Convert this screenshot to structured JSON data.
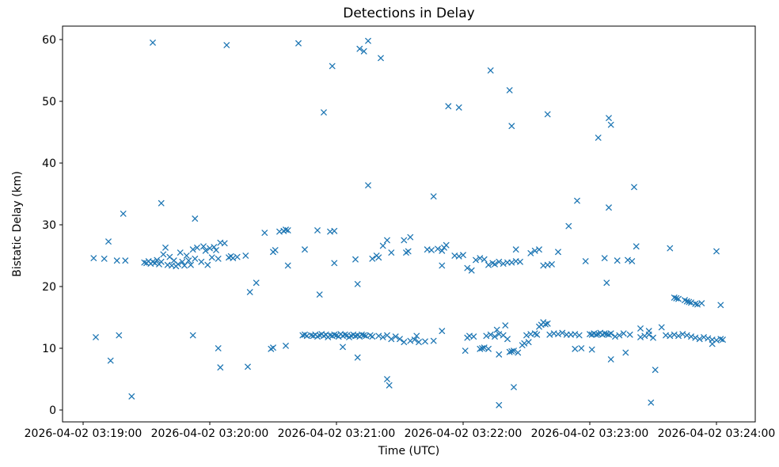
{
  "chart": {
    "title": "Detections in Delay",
    "xlabel": "Time (UTC)",
    "ylabel": "Bistatic Delay (km)"
  },
  "chart_data": {
    "type": "scatter",
    "title": "Detections in Delay",
    "xlabel": "Time (UTC)",
    "ylabel": "Bistatic Delay (km)",
    "marker": "x",
    "marker_color": "#1f77b4",
    "grid": false,
    "legend": null,
    "x_unit": "seconds after 2026-04-02 03:19:00 UTC",
    "x_tick_labels": [
      "2026-04-02 03:19:00",
      "2026-04-02 03:20:00",
      "2026-04-02 03:21:00",
      "2026-04-02 03:22:00",
      "2026-04-02 03:23:00",
      "2026-04-02 03:24:00"
    ],
    "x_ticks_seconds": [
      0,
      60,
      120,
      180,
      240,
      300
    ],
    "y_ticks": [
      0,
      10,
      20,
      30,
      40,
      50,
      60
    ],
    "xlim_seconds": [
      -9.75,
      318.4
    ],
    "ylim": [
      -1.9,
      62.2
    ],
    "points": [
      [
        5,
        24.6
      ],
      [
        6,
        11.8
      ],
      [
        10,
        24.5
      ],
      [
        12,
        27.3
      ],
      [
        13,
        8.0
      ],
      [
        16,
        24.2
      ],
      [
        17,
        12.1
      ],
      [
        19,
        31.8
      ],
      [
        20,
        24.2
      ],
      [
        23,
        2.2
      ],
      [
        29,
        23.9
      ],
      [
        30,
        23.8
      ],
      [
        31,
        24.1
      ],
      [
        32,
        23.7
      ],
      [
        33,
        24.0
      ],
      [
        33,
        59.5
      ],
      [
        34,
        23.8
      ],
      [
        35,
        24.3
      ],
      [
        36,
        23.6
      ],
      [
        37,
        24.0
      ],
      [
        37,
        33.5
      ],
      [
        38,
        25.2
      ],
      [
        39,
        26.3
      ],
      [
        40,
        23.5
      ],
      [
        41,
        24.8
      ],
      [
        42,
        23.4
      ],
      [
        43,
        24.2
      ],
      [
        44,
        23.3
      ],
      [
        45,
        23.6
      ],
      [
        46,
        25.5
      ],
      [
        47,
        24.0
      ],
      [
        48,
        23.4
      ],
      [
        49,
        25.0
      ],
      [
        50,
        24.2
      ],
      [
        51,
        23.5
      ],
      [
        52,
        26.0
      ],
      [
        52,
        12.1
      ],
      [
        53,
        24.5
      ],
      [
        53,
        31.0
      ],
      [
        54,
        26.3
      ],
      [
        56,
        24.0
      ],
      [
        57,
        26.5
      ],
      [
        58,
        25.8
      ],
      [
        59,
        23.5
      ],
      [
        60,
        26.2
      ],
      [
        61,
        24.7
      ],
      [
        62,
        26.4
      ],
      [
        63,
        25.9
      ],
      [
        64,
        24.5
      ],
      [
        64,
        10.0
      ],
      [
        65,
        27.1
      ],
      [
        65,
        6.9
      ],
      [
        67,
        27.0
      ],
      [
        68,
        59.1
      ],
      [
        69,
        24.7
      ],
      [
        70,
        24.9
      ],
      [
        71,
        24.6
      ],
      [
        73,
        24.8
      ],
      [
        77,
        25.0
      ],
      [
        78,
        7.0
      ],
      [
        79,
        19.1
      ],
      [
        82,
        20.6
      ],
      [
        86,
        28.7
      ],
      [
        89,
        9.9
      ],
      [
        90,
        10.1
      ],
      [
        90,
        25.6
      ],
      [
        91,
        25.9
      ],
      [
        93,
        28.9
      ],
      [
        95,
        29.0
      ],
      [
        96,
        29.2
      ],
      [
        96,
        10.4
      ],
      [
        97,
        29.1
      ],
      [
        97,
        23.4
      ],
      [
        102,
        59.4
      ],
      [
        104,
        12.1
      ],
      [
        105,
        26.0
      ],
      [
        105,
        12.2
      ],
      [
        106,
        12.0
      ],
      [
        108,
        12.1
      ],
      [
        109,
        12.0
      ],
      [
        110,
        12.2
      ],
      [
        111,
        11.9
      ],
      [
        111,
        29.1
      ],
      [
        112,
        12.1
      ],
      [
        112,
        18.7
      ],
      [
        113,
        12.3
      ],
      [
        114,
        12.0
      ],
      [
        114,
        48.2
      ],
      [
        115,
        12.2
      ],
      [
        116,
        11.8
      ],
      [
        117,
        12.1
      ],
      [
        117,
        28.9
      ],
      [
        118,
        12.0
      ],
      [
        118,
        55.7
      ],
      [
        119,
        12.2
      ],
      [
        119,
        29.0
      ],
      [
        119,
        23.8
      ],
      [
        120,
        12.1
      ],
      [
        121,
        11.9
      ],
      [
        122,
        12.3
      ],
      [
        123,
        12.0
      ],
      [
        123,
        10.2
      ],
      [
        124,
        12.2
      ],
      [
        125,
        12.1
      ],
      [
        126,
        11.8
      ],
      [
        127,
        12.0
      ],
      [
        128,
        12.2
      ],
      [
        129,
        12.0
      ],
      [
        129,
        24.4
      ],
      [
        130,
        12.1
      ],
      [
        130,
        8.5
      ],
      [
        130,
        20.4
      ],
      [
        131,
        11.9
      ],
      [
        131,
        58.5
      ],
      [
        132,
        12.2
      ],
      [
        133,
        12.1
      ],
      [
        133,
        58.1
      ],
      [
        134,
        12.0
      ],
      [
        135,
        59.8
      ],
      [
        135,
        36.4
      ],
      [
        136,
        12.1
      ],
      [
        137,
        11.9
      ],
      [
        137,
        24.5
      ],
      [
        139,
        25.0
      ],
      [
        140,
        24.7
      ],
      [
        140,
        12.0
      ],
      [
        141,
        57.0
      ],
      [
        142,
        26.6
      ],
      [
        142,
        11.8
      ],
      [
        144,
        27.5
      ],
      [
        144,
        12.1
      ],
      [
        144,
        5.0
      ],
      [
        145,
        4.0
      ],
      [
        146,
        25.5
      ],
      [
        146,
        11.5
      ],
      [
        148,
        11.9
      ],
      [
        150,
        11.5
      ],
      [
        152,
        11.0
      ],
      [
        152,
        27.5
      ],
      [
        153,
        25.5
      ],
      [
        154,
        25.7
      ],
      [
        155,
        28.0
      ],
      [
        155,
        11.2
      ],
      [
        157,
        11.4
      ],
      [
        158,
        12.0
      ],
      [
        159,
        11.0
      ],
      [
        162,
        11.1
      ],
      [
        163,
        26.0
      ],
      [
        165,
        25.9
      ],
      [
        166,
        34.6
      ],
      [
        166,
        11.2
      ],
      [
        168,
        26.1
      ],
      [
        170,
        25.8
      ],
      [
        170,
        23.4
      ],
      [
        170,
        12.8
      ],
      [
        171,
        26.3
      ],
      [
        172,
        26.7
      ],
      [
        173,
        49.2
      ],
      [
        176,
        25.0
      ],
      [
        178,
        24.9
      ],
      [
        178,
        49.0
      ],
      [
        180,
        25.1
      ],
      [
        181,
        9.6
      ],
      [
        182,
        23.0
      ],
      [
        182,
        11.7
      ],
      [
        183,
        12.0
      ],
      [
        184,
        22.6
      ],
      [
        185,
        11.9
      ],
      [
        186,
        24.3
      ],
      [
        188,
        24.6
      ],
      [
        188,
        9.9
      ],
      [
        189,
        10.0
      ],
      [
        190,
        24.4
      ],
      [
        190,
        10.1
      ],
      [
        191,
        12.0
      ],
      [
        192,
        23.5
      ],
      [
        192,
        9.9
      ],
      [
        193,
        12.2
      ],
      [
        193,
        55.0
      ],
      [
        194,
        23.8
      ],
      [
        195,
        23.6
      ],
      [
        195,
        11.9
      ],
      [
        196,
        13.0
      ],
      [
        197,
        24.0
      ],
      [
        197,
        12.3
      ],
      [
        197,
        9.0
      ],
      [
        197,
        0.8
      ],
      [
        199,
        23.7
      ],
      [
        199,
        12.1
      ],
      [
        200,
        13.7
      ],
      [
        201,
        23.9
      ],
      [
        201,
        11.5
      ],
      [
        202,
        51.8
      ],
      [
        202,
        9.4
      ],
      [
        203,
        46.0
      ],
      [
        203,
        23.9
      ],
      [
        203,
        9.5
      ],
      [
        204,
        9.6
      ],
      [
        204,
        3.7
      ],
      [
        205,
        26.0
      ],
      [
        205,
        24.1
      ],
      [
        206,
        9.3
      ],
      [
        207,
        24.0
      ],
      [
        208,
        10.5
      ],
      [
        209,
        10.8
      ],
      [
        210,
        12.1
      ],
      [
        211,
        11.0
      ],
      [
        212,
        12.3
      ],
      [
        212,
        25.4
      ],
      [
        214,
        12.4
      ],
      [
        214,
        25.8
      ],
      [
        215,
        12.2
      ],
      [
        216,
        26.0
      ],
      [
        216,
        13.5
      ],
      [
        217,
        13.8
      ],
      [
        218,
        14.2
      ],
      [
        218,
        23.4
      ],
      [
        219,
        13.9
      ],
      [
        220,
        14.0
      ],
      [
        220,
        23.5
      ],
      [
        220,
        47.9
      ],
      [
        221,
        12.2
      ],
      [
        222,
        23.6
      ],
      [
        223,
        12.4
      ],
      [
        225,
        12.3
      ],
      [
        225,
        25.6
      ],
      [
        227,
        12.5
      ],
      [
        229,
        12.2
      ],
      [
        230,
        29.8
      ],
      [
        231,
        12.2
      ],
      [
        233,
        12.3
      ],
      [
        233,
        9.9
      ],
      [
        234,
        33.9
      ],
      [
        235,
        12.1
      ],
      [
        236,
        10.0
      ],
      [
        238,
        24.1
      ],
      [
        240,
        12.3
      ],
      [
        241,
        12.2
      ],
      [
        241,
        9.8
      ],
      [
        242,
        12.4
      ],
      [
        243,
        12.2
      ],
      [
        244,
        12.3
      ],
      [
        244,
        44.1
      ],
      [
        245,
        12.5
      ],
      [
        246,
        12.2
      ],
      [
        247,
        12.4
      ],
      [
        247,
        24.6
      ],
      [
        248,
        12.3
      ],
      [
        248,
        20.6
      ],
      [
        249,
        12.2
      ],
      [
        249,
        47.3
      ],
      [
        249,
        32.8
      ],
      [
        250,
        12.4
      ],
      [
        250,
        46.2
      ],
      [
        250,
        8.2
      ],
      [
        252,
        11.9
      ],
      [
        253,
        24.2
      ],
      [
        254,
        12.1
      ],
      [
        256,
        12.4
      ],
      [
        257,
        9.3
      ],
      [
        258,
        24.3
      ],
      [
        259,
        12.2
      ],
      [
        260,
        24.1
      ],
      [
        261,
        36.1
      ],
      [
        262,
        26.5
      ],
      [
        264,
        13.2
      ],
      [
        264,
        11.8
      ],
      [
        266,
        12.0
      ],
      [
        268,
        12.2
      ],
      [
        268,
        12.8
      ],
      [
        269,
        1.2
      ],
      [
        270,
        11.7
      ],
      [
        271,
        6.5
      ],
      [
        274,
        13.4
      ],
      [
        276,
        12.1
      ],
      [
        278,
        26.2
      ],
      [
        278,
        12.0
      ],
      [
        280,
        18.2
      ],
      [
        280,
        12.2
      ],
      [
        281,
        18.1
      ],
      [
        282,
        18.0
      ],
      [
        282,
        12.0
      ],
      [
        284,
        12.3
      ],
      [
        285,
        17.8
      ],
      [
        286,
        17.6
      ],
      [
        286,
        12.1
      ],
      [
        287,
        17.5
      ],
      [
        288,
        17.4
      ],
      [
        288,
        11.9
      ],
      [
        290,
        17.2
      ],
      [
        290,
        11.7
      ],
      [
        291,
        17.1
      ],
      [
        292,
        11.5
      ],
      [
        293,
        17.3
      ],
      [
        294,
        11.8
      ],
      [
        296,
        11.6
      ],
      [
        298,
        11.4
      ],
      [
        298,
        10.7
      ],
      [
        300,
        11.3
      ],
      [
        300,
        25.7
      ],
      [
        302,
        11.5
      ],
      [
        302,
        17.0
      ],
      [
        303,
        11.4
      ]
    ]
  }
}
